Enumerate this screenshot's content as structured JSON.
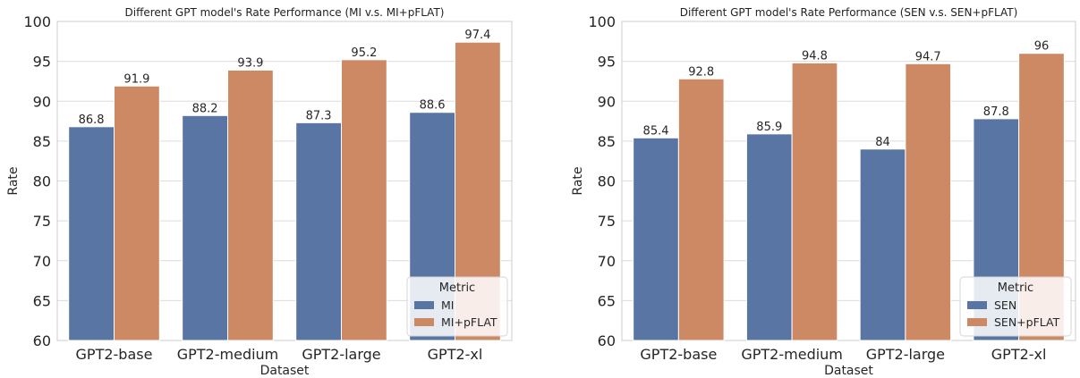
{
  "chart_data": [
    {
      "type": "bar",
      "title": "Different GPT model's Rate Performance (MI v.s. MI+pFLAT)",
      "xlabel": "Dataset",
      "ylabel": "Rate",
      "ylim": [
        60,
        100
      ],
      "yticks": [
        60,
        65,
        70,
        75,
        80,
        85,
        90,
        95,
        100
      ],
      "grid": true,
      "categories": [
        "GPT2-base",
        "GPT2-medium",
        "GPT2-large",
        "GPT2-xl"
      ],
      "series": [
        {
          "name": "MI",
          "values": [
            86.8,
            88.2,
            87.3,
            88.6
          ],
          "labels": [
            "86.8",
            "88.2",
            "87.3",
            "88.6"
          ],
          "color": "#5975a4"
        },
        {
          "name": "MI+pFLAT",
          "values": [
            91.9,
            93.9,
            95.2,
            97.4
          ],
          "labels": [
            "91.9",
            "93.9",
            "95.2",
            "97.4"
          ],
          "color": "#cc8963"
        }
      ],
      "legend": {
        "title": "Metric",
        "placement": "lower-right"
      }
    },
    {
      "type": "bar",
      "title": "Different GPT model's Rate Performance (SEN v.s. SEN+pFLAT)",
      "xlabel": "Dataset",
      "ylabel": "Rate",
      "ylim": [
        60,
        100
      ],
      "yticks": [
        60,
        65,
        70,
        75,
        80,
        85,
        90,
        95,
        100
      ],
      "grid": true,
      "categories": [
        "GPT2-base",
        "GPT2-medium",
        "GPT2-large",
        "GPT2-xl"
      ],
      "series": [
        {
          "name": "SEN",
          "values": [
            85.4,
            85.9,
            84,
            87.8
          ],
          "labels": [
            "85.4",
            "85.9",
            "84",
            "87.8"
          ],
          "color": "#5975a4"
        },
        {
          "name": "SEN+pFLAT",
          "values": [
            92.8,
            94.8,
            94.7,
            96
          ],
          "labels": [
            "92.8",
            "94.8",
            "94.7",
            "96"
          ],
          "color": "#cc8963"
        }
      ],
      "legend": {
        "title": "Metric",
        "placement": "lower-right"
      }
    }
  ]
}
